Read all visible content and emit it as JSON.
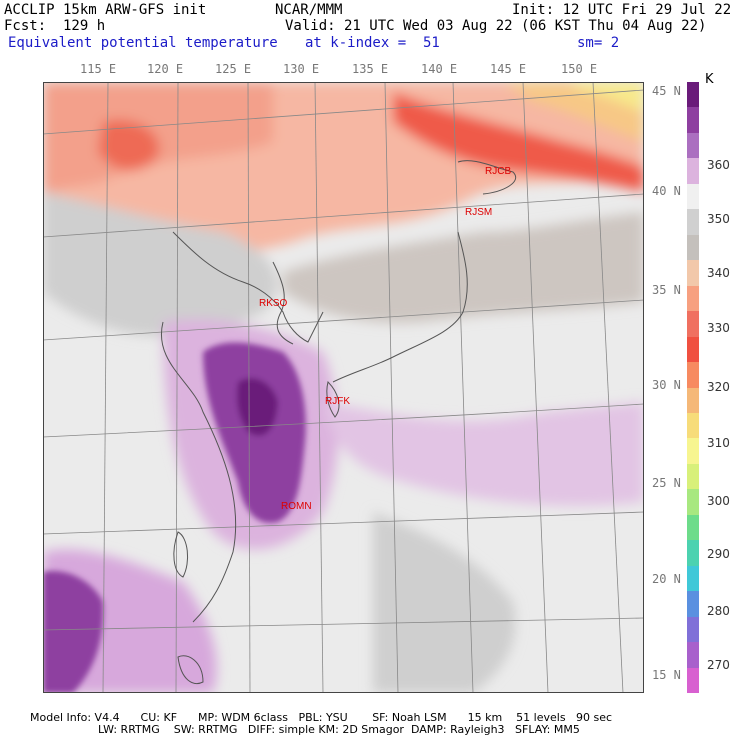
{
  "header": {
    "line1_left": "ACCLIP 15km ARW-GFS init",
    "line1_center": "NCAR/MMM",
    "line1_right": "Init: 12 UTC Fri 29 Jul 22",
    "line2_left": "Fcst:  129 h",
    "line2_right": "Valid: 21 UTC Wed 03 Aug 22 (06 KST Thu 04 Aug 22)",
    "line3_left": "Equivalent potential temperature",
    "line3_center": "at k-index =  51",
    "line3_right": "sm= 2"
  },
  "axes": {
    "lon_ticks": [
      "115 E",
      "120 E",
      "125 E",
      "130 E",
      "135 E",
      "140 E",
      "145 E",
      "150 E"
    ],
    "lat_ticks": [
      "45 N",
      "40 N",
      "35 N",
      "30 N",
      "25 N",
      "20 N",
      "15 N"
    ]
  },
  "stations": [
    {
      "code": "RJCB"
    },
    {
      "code": "RJSM"
    },
    {
      "code": "RKSO"
    },
    {
      "code": "RJFK"
    },
    {
      "code": "ROMN"
    }
  ],
  "colorbar": {
    "unit": "K",
    "labels": [
      "360",
      "350",
      "340",
      "330",
      "320",
      "310",
      "300",
      "290",
      "280",
      "270"
    ],
    "colors": [
      "#6a1b7a",
      "#8e3fa0",
      "#ab6fc0",
      "#dcb3de",
      "#f0f0f0",
      "#d0d0d0",
      "#c4c0bc",
      "#f2c8aa",
      "#f7a080",
      "#f07060",
      "#f05040",
      "#f78a60",
      "#f5b878",
      "#f7dc7a",
      "#f7f590",
      "#d8f07a",
      "#a8e880",
      "#6ddc8a",
      "#4cd2b0",
      "#40c8d8",
      "#5a90e0",
      "#8070d8",
      "#a860cc",
      "#d860d0"
    ]
  },
  "footer": {
    "line1": "Model Info: V4.4      CU: KF      MP: WDM 6class   PBL: YSU       SF: Noah LSM      15 km    51 levels   90 sec",
    "line2": "LW: RRTMG    SW: RRTMG   DIFF: simple KM: 2D Smagor  DAMP: Rayleigh3   SFLAY: MM5"
  }
}
